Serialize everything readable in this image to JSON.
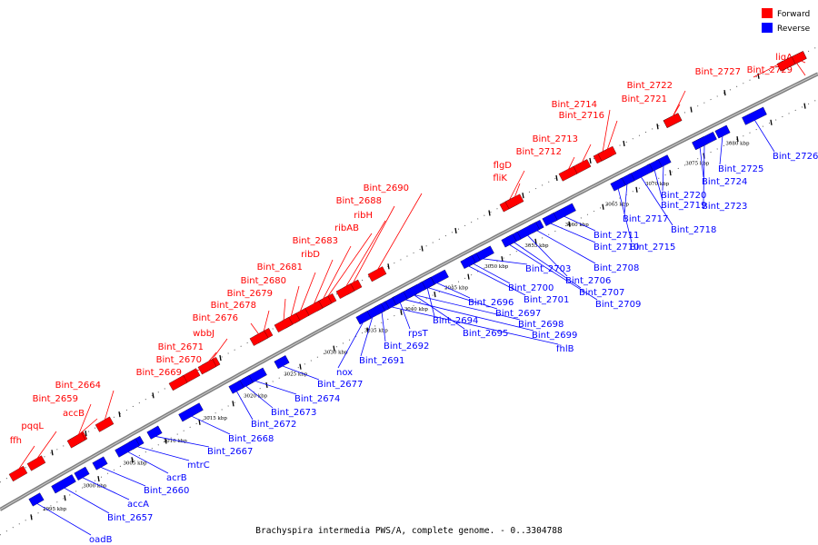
{
  "caption": "Brachyspira intermedia PWS/A, complete genome. - 0..3304788",
  "legend": {
    "forward": {
      "label": "Forward",
      "color": "#ff0000"
    },
    "reverse": {
      "label": "Reverse",
      "color": "#0000ff"
    }
  },
  "colors": {
    "forward": "#ff0000",
    "reverse": "#0000ff",
    "backbone": "#808080"
  },
  "scale_ticks": [
    "2995 kbp",
    "3000 kbp",
    "3005 kbp",
    "3010 kbp",
    "3015 kbp",
    "3020 kbp",
    "3025 kbp",
    "3030 kbp",
    "3035 kbp",
    "3040 kbp",
    "3045 kbp",
    "3050 kbp",
    "3055 kbp",
    "3060 kbp",
    "3065 kbp",
    "3070 kbp",
    "3075 kbp",
    "3080 kbp"
  ],
  "forward_labels": [
    "Bint_2729",
    "ligA",
    "Bint_2727",
    "Bint_2722",
    "Bint_2721",
    "Bint_2714",
    "Bint_2716",
    "Bint_2713",
    "Bint_2712",
    "flgD",
    "fliK",
    "Bint_2690",
    "Bint_2688",
    "ribH",
    "ribAB",
    "Bint_2683",
    "ribD",
    "Bint_2681",
    "Bint_2680",
    "Bint_2679",
    "Bint_2678",
    "Bint_2676",
    "wbbJ",
    "Bint_2671",
    "Bint_2670",
    "Bint_2669",
    "Bint_2664",
    "Bint_2659",
    "accB",
    "pqqL",
    "ffh"
  ],
  "reverse_labels": [
    "Bint_2726",
    "Bint_2725",
    "Bint_2724",
    "Bint_2723",
    "Bint_2720",
    "Bint_2719",
    "Bint_2718",
    "Bint_2717",
    "Bint_2715",
    "Bint_2711",
    "Bint_2710",
    "Bint_2708",
    "Bint_2706",
    "Bint_2707",
    "Bint_2709",
    "Bint_2703",
    "Bint_2700",
    "Bint_2701",
    "Bint_2696",
    "Bint_2697",
    "Bint_2698",
    "Bint_2699",
    "fhlB",
    "Bint_2694",
    "Bint_2695",
    "rpsT",
    "Bint_2692",
    "Bint_2691",
    "nox",
    "Bint_2677",
    "Bint_2674",
    "Bint_2673",
    "Bint_2672",
    "Bint_2668",
    "Bint_2667",
    "mtrC",
    "acrB",
    "Bint_2660",
    "accA",
    "Bint_2657",
    "oadB"
  ]
}
